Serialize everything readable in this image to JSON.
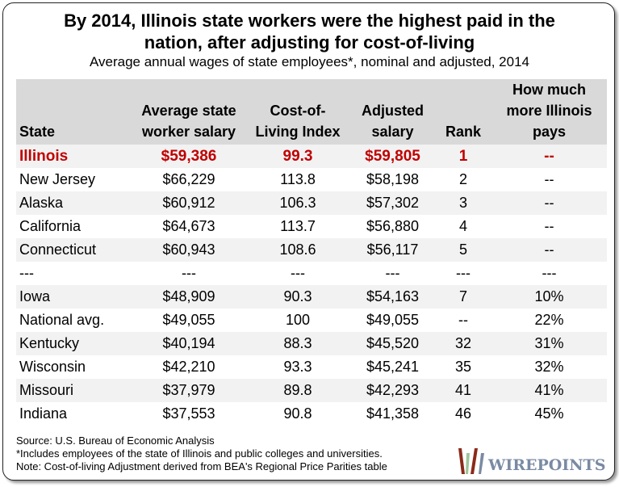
{
  "title_line1": "By 2014, Illinois state workers were the highest paid in the",
  "title_line2": "nation, after adjusting for cost-of-living",
  "subtitle": "Average annual wages of state employees*, nominal and adjusted, 2014",
  "headers": {
    "state": "State",
    "salary1": "Average state",
    "salary2": "worker salary",
    "col1": "Cost-of-",
    "col2": "Living Index",
    "adj1": "Adjusted",
    "adj2": "salary",
    "rank": "Rank",
    "more1": "How much",
    "more2": "more Illinois",
    "more3": "pays"
  },
  "rows": [
    [
      "Illinois",
      "$59,386",
      "99.3",
      "$59,805",
      "1",
      "--"
    ],
    [
      "New Jersey",
      "$66,229",
      "113.8",
      "$58,198",
      "2",
      "--"
    ],
    [
      "Alaska",
      "$60,912",
      "106.3",
      "$57,302",
      "3",
      "--"
    ],
    [
      "California",
      "$64,673",
      "113.7",
      "$56,880",
      "4",
      "--"
    ],
    [
      "Connecticut",
      "$60,943",
      "108.6",
      "$56,117",
      "5",
      "--"
    ],
    [
      "---",
      "---",
      "---",
      "---",
      "---",
      "---"
    ],
    [
      "Iowa",
      "$48,909",
      "90.3",
      "$54,163",
      "7",
      "10%"
    ],
    [
      "National avg.",
      "$49,055",
      "100",
      "$49,055",
      "--",
      "22%"
    ],
    [
      "Kentucky",
      "$40,194",
      "88.3",
      "$45,520",
      "32",
      "31%"
    ],
    [
      "Wisconsin",
      "$42,210",
      "93.3",
      "$45,241",
      "35",
      "32%"
    ],
    [
      "Missouri",
      "$37,979",
      "89.8",
      "$42,293",
      "41",
      "41%"
    ],
    [
      "Indiana",
      "$37,553",
      "90.8",
      "$41,358",
      "46",
      "45%"
    ]
  ],
  "notes": [
    "Source: U.S. Bureau of Economic Analysis",
    "*Includes employees of the state of Illinois and public colleges and universities.",
    "Note: Cost-of-living Adjustment derived from BEA's Regional Price Parities table"
  ],
  "logo_text": "WIREPOINTS",
  "colors": {
    "highlight": "#c00000",
    "header_bg": "#d9d9d9",
    "stripe": "#f2f2f2"
  }
}
